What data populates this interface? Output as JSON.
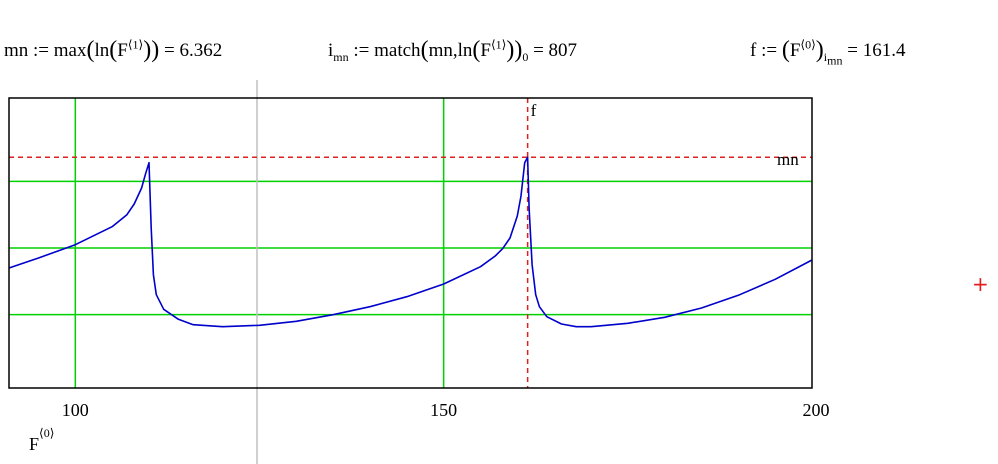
{
  "formulas": {
    "mn": {
      "lhs": "mn",
      "op": ":=",
      "func": "max",
      "inner": "ln",
      "arg": "F",
      "sup": "⟨1⟩",
      "result": "6.362"
    },
    "imn": {
      "lhs": "i",
      "lhs_sub": "mn",
      "op": ":=",
      "func": "match",
      "arg1": "mn",
      "inner": "ln",
      "arg": "F",
      "sup": "⟨1⟩",
      "index": "0",
      "result": "807"
    },
    "f": {
      "lhs": "f",
      "op": ":=",
      "arg": "F",
      "sup": "⟨0⟩",
      "sub_i": "i",
      "sub_mn": "mn",
      "result": "161.4"
    }
  },
  "chart_data": {
    "type": "line",
    "xlim": [
      91,
      200
    ],
    "ylim": [
      2.9,
      7.25
    ],
    "x_ticks": [
      100,
      150,
      200
    ],
    "y_grid": [
      4.0,
      5.0,
      6.0
    ],
    "x_grid": [
      100,
      150
    ],
    "xlabel": "F",
    "xlabel_sup": "⟨0⟩",
    "series": [
      {
        "color": "#0000cc",
        "x": [
          91,
          95,
          100,
          105,
          107,
          108,
          109,
          109.5,
          110,
          110.3,
          110.6,
          111,
          112,
          114,
          116,
          120,
          125,
          130,
          135,
          140,
          145,
          150,
          155,
          157,
          158,
          159,
          160,
          160.5,
          161,
          161.4,
          161.6,
          162,
          162.5,
          163,
          164,
          166,
          168,
          170,
          175,
          180,
          185,
          190,
          195,
          200
        ],
        "y": [
          4.7,
          4.85,
          5.05,
          5.32,
          5.5,
          5.66,
          5.9,
          6.1,
          6.28,
          5.3,
          4.6,
          4.3,
          4.08,
          3.93,
          3.85,
          3.82,
          3.84,
          3.9,
          4.0,
          4.12,
          4.27,
          4.46,
          4.72,
          4.88,
          4.99,
          5.15,
          5.48,
          5.78,
          6.28,
          6.362,
          5.6,
          4.75,
          4.3,
          4.12,
          3.97,
          3.86,
          3.82,
          3.82,
          3.87,
          3.96,
          4.1,
          4.29,
          4.53,
          4.82
        ]
      }
    ],
    "markers": [
      {
        "type": "vline",
        "x": 161.4,
        "label": "f",
        "color": "#e02020"
      },
      {
        "type": "hline",
        "y": 6.362,
        "label": "mn",
        "color": "#e02020"
      }
    ]
  },
  "cursor_icon": "red-plus-cross",
  "colors": {
    "grid": "#00d000",
    "trace": "#0000cc",
    "marker": "#e02020",
    "cursor_line": "#c0c0c0"
  }
}
